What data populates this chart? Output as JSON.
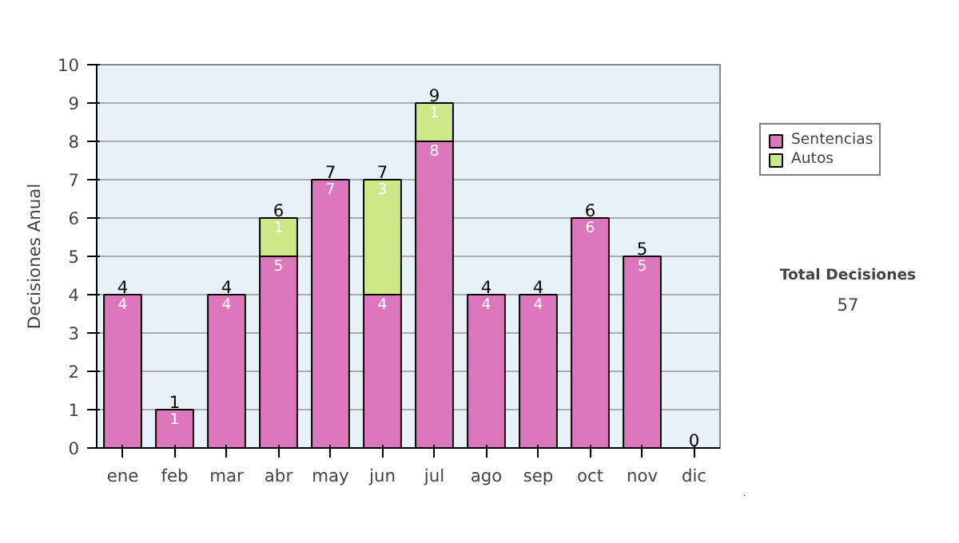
{
  "chart_data": {
    "type": "bar",
    "stacked": true,
    "ylabel": "Decisiones Anual",
    "categories": [
      "ene",
      "feb",
      "mar",
      "abr",
      "may",
      "jun",
      "jul",
      "ago",
      "sep",
      "oct",
      "nov",
      "dic"
    ],
    "series": [
      {
        "name": "Sentencias",
        "color": "#dd77bb",
        "values": [
          4,
          1,
          4,
          5,
          7,
          4,
          8,
          4,
          4,
          6,
          5,
          0
        ],
        "value_labels": [
          "4",
          "1",
          "4",
          "5",
          "7",
          "4",
          "8",
          "4",
          "4",
          "6",
          "5",
          null
        ]
      },
      {
        "name": "Autos",
        "color": "#cce888",
        "values": [
          null,
          null,
          null,
          1,
          null,
          3,
          1,
          null,
          null,
          null,
          null,
          null
        ],
        "value_labels": [
          null,
          null,
          null,
          "1",
          null,
          "3",
          "1",
          null,
          null,
          null,
          null,
          null
        ]
      }
    ],
    "totals": [
      "4",
      "1",
      "4",
      "6",
      "7",
      "7",
      "9",
      "4",
      "4",
      "6",
      "5",
      "0"
    ],
    "ylim": [
      0,
      10
    ],
    "yticks": [
      0,
      1,
      2,
      3,
      4,
      5,
      6,
      7,
      8,
      9,
      10
    ],
    "grid": "y",
    "legend": "right",
    "annotations": [
      "Total Decisiones",
      "57"
    ]
  }
}
